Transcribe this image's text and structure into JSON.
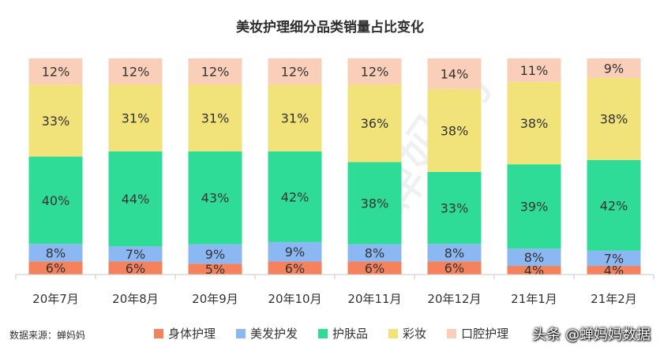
{
  "chart_data": {
    "type": "bar",
    "stacked": true,
    "percent": true,
    "title": "美妆护理细分品类销量占比变化",
    "categories": [
      "20年7月",
      "20年8月",
      "20年9月",
      "20年10月",
      "20年11月",
      "20年12月",
      "21年1月",
      "21年2月"
    ],
    "series": [
      {
        "name": "身体护理",
        "color": "#f4825c",
        "values": [
          6,
          6,
          5,
          6,
          6,
          6,
          4,
          4
        ]
      },
      {
        "name": "美发护发",
        "color": "#8bb8f3",
        "values": [
          8,
          7,
          9,
          9,
          8,
          8,
          8,
          7
        ]
      },
      {
        "name": "护肤品",
        "color": "#2edc98",
        "values": [
          40,
          44,
          43,
          42,
          38,
          33,
          39,
          42
        ]
      },
      {
        "name": "彩妆",
        "color": "#f2e27a",
        "values": [
          33,
          31,
          31,
          31,
          36,
          38,
          38,
          38
        ]
      },
      {
        "name": "口腔护理",
        "color": "#f9cfb9",
        "values": [
          12,
          12,
          12,
          12,
          12,
          14,
          11,
          9
        ]
      }
    ],
    "xlabel": "",
    "ylabel": "",
    "ylim": [
      0,
      100
    ],
    "legend_position": "bottom",
    "source": "数据来源：蝉妈妈"
  },
  "attribution": "头条 @蝉妈妈数据"
}
